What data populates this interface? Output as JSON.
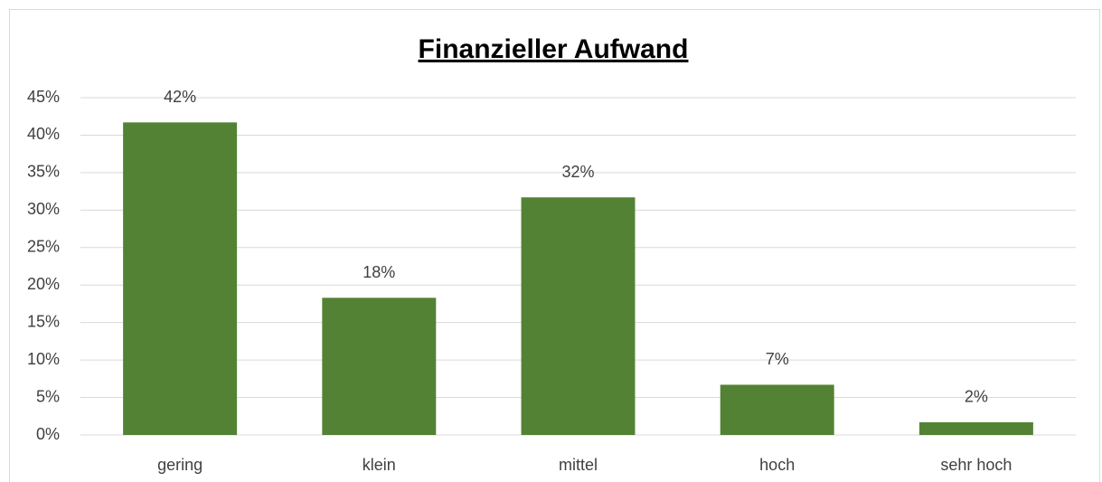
{
  "chart_data": {
    "type": "bar",
    "title": "Finanzieller Aufwand",
    "categories": [
      "gering",
      "klein",
      "mittel",
      "hoch",
      "sehr hoch"
    ],
    "values": [
      41.7,
      18.3,
      31.7,
      6.7,
      1.7
    ],
    "value_labels": [
      "42%",
      "18%",
      "32%",
      "7%",
      "2%"
    ],
    "color": "#548235",
    "ylim": [
      0,
      45
    ],
    "yticks": [
      {
        "value": 0,
        "label": "0%"
      },
      {
        "value": 5,
        "label": "5%"
      },
      {
        "value": 10,
        "label": "10%"
      },
      {
        "value": 15,
        "label": "15%"
      },
      {
        "value": 20,
        "label": "20%"
      },
      {
        "value": 25,
        "label": "25%"
      },
      {
        "value": 30,
        "label": "30%"
      },
      {
        "value": 35,
        "label": "35%"
      },
      {
        "value": 40,
        "label": "40%"
      },
      {
        "value": 45,
        "label": "45%"
      }
    ],
    "grid": true
  }
}
